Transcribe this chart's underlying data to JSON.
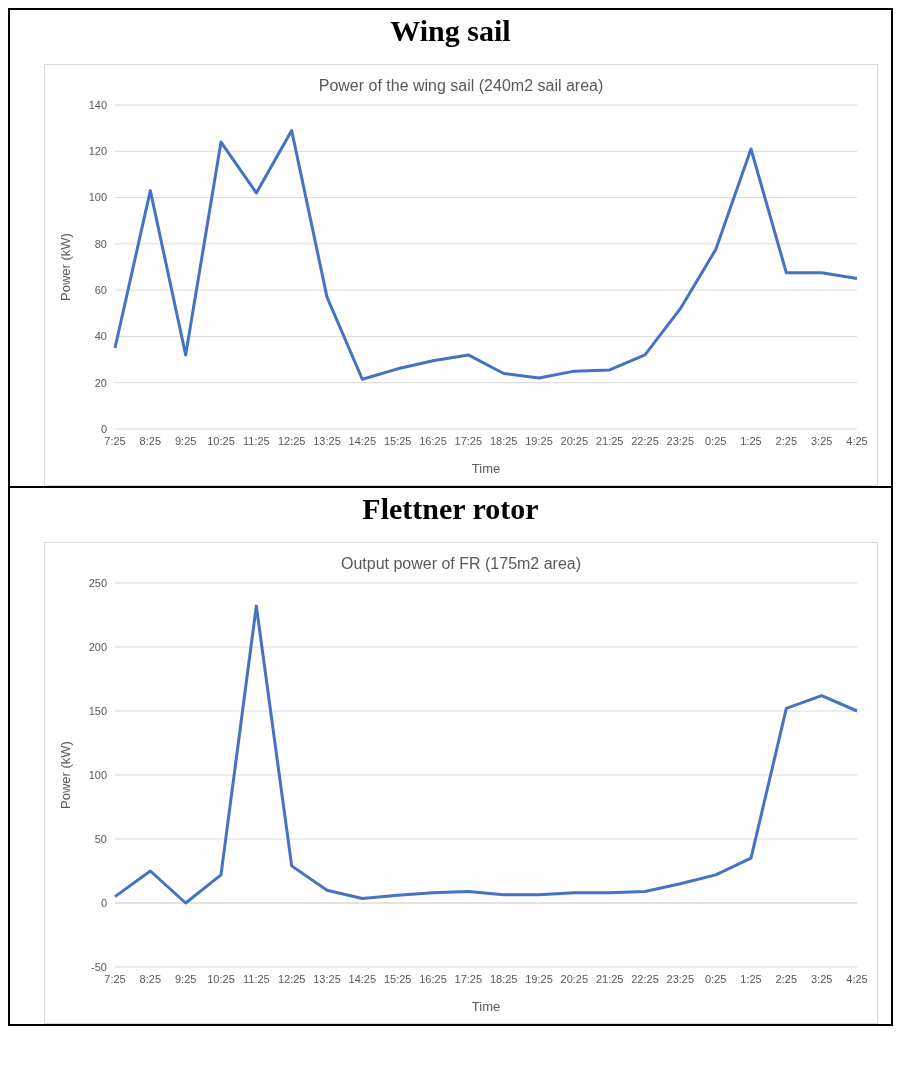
{
  "chart_data": [
    {
      "type": "line",
      "title": "Wing sail",
      "subtitle": "Power of the wing sail (240m2 sail area)",
      "xlabel": "Time",
      "ylabel": "Power (kW)",
      "categories": [
        "7:25",
        "8:25",
        "9:25",
        "10:25",
        "11:25",
        "12:25",
        "13:25",
        "14:25",
        "15:25",
        "16:25",
        "17:25",
        "18:25",
        "19:25",
        "20:25",
        "21:25",
        "22:25",
        "23:25",
        "0:25",
        "1:25",
        "2:25",
        "3:25",
        "4:25"
      ],
      "series": [
        {
          "color": "#4472c4",
          "values": [
            35,
            103,
            32,
            124,
            102,
            129,
            57,
            21.5,
            26,
            29.5,
            32,
            24,
            22,
            25,
            25.5,
            32,
            52,
            77.5,
            121,
            67.5,
            67.5,
            65
          ]
        }
      ],
      "ylim": [
        0,
        140
      ],
      "yticks": [
        0,
        20,
        40,
        60,
        80,
        100,
        120,
        140
      ],
      "grid": "y",
      "marker": "none",
      "line_style": "solid"
    },
    {
      "type": "line",
      "title": "Flettner rotor",
      "subtitle": "Output power of FR (175m2 area)",
      "xlabel": "Time",
      "ylabel": "Power (kW)",
      "categories": [
        "7:25",
        "8:25",
        "9:25",
        "10:25",
        "11:25",
        "12:25",
        "13:25",
        "14:25",
        "15:25",
        "16:25",
        "17:25",
        "18:25",
        "19:25",
        "20:25",
        "21:25",
        "22:25",
        "23:25",
        "0:25",
        "1:25",
        "2:25",
        "3:25",
        "4:25"
      ],
      "series": [
        {
          "color": "#4472c4",
          "values": [
            5,
            25,
            0,
            22,
            232,
            29,
            10,
            3.5,
            6,
            8,
            9,
            6.5,
            6.5,
            8,
            8,
            9,
            15,
            22,
            35,
            152,
            162,
            150
          ]
        }
      ],
      "ylim": [
        -50,
        250
      ],
      "yticks": [
        -50,
        0,
        50,
        100,
        150,
        200,
        250
      ],
      "grid": "y",
      "marker": "none",
      "line_style": "solid"
    }
  ]
}
